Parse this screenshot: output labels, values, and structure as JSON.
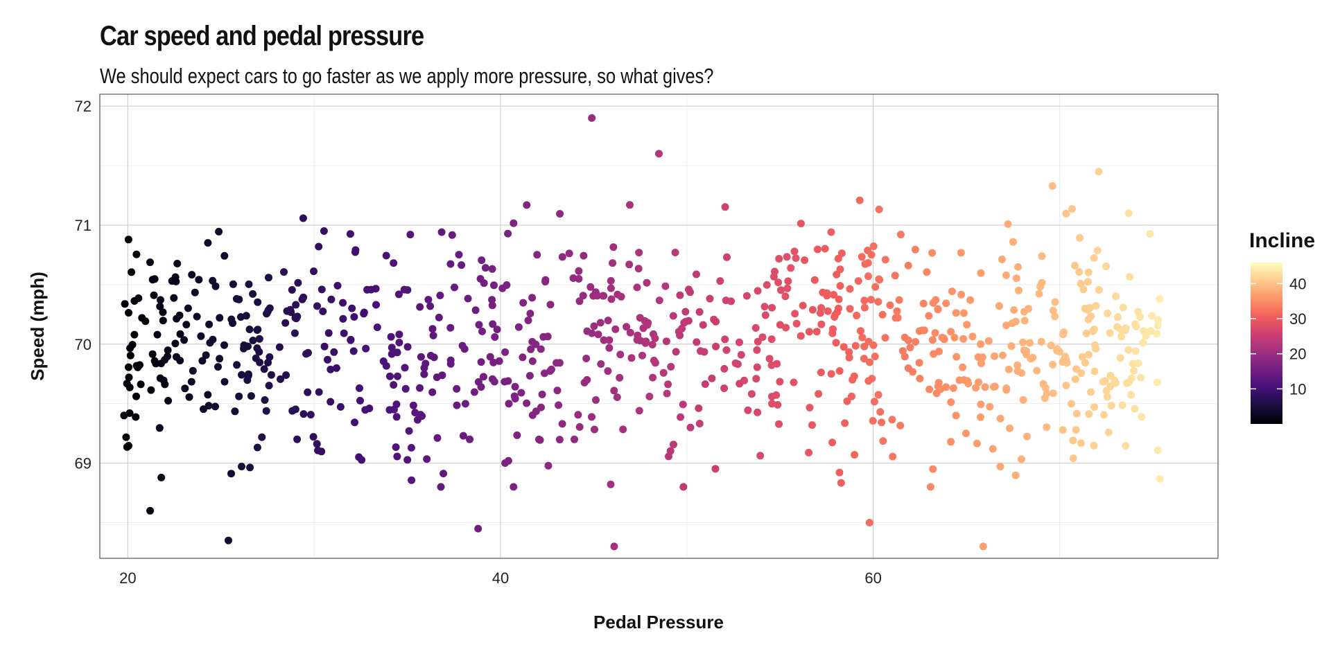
{
  "chart_data": {
    "type": "scatter",
    "title": "Car speed and pedal pressure",
    "subtitle": "We should expect cars to go faster as we apply more pressure, so what gives?",
    "xlabel": "Pedal Pressure",
    "ylabel": "Speed (mph)",
    "xlim": [
      18.5,
      78.5
    ],
    "ylim": [
      68.2,
      72.1
    ],
    "x_ticks": [
      20,
      40,
      60
    ],
    "x_tick_labels": [
      "20",
      "40",
      "60"
    ],
    "y_ticks": [
      69,
      70,
      71,
      72
    ],
    "y_tick_labels": [
      "69",
      "70",
      "71",
      "72"
    ],
    "grid": true,
    "color_by": "Incline",
    "legend": {
      "title": "Incline",
      "ticks": [
        10,
        20,
        30,
        40
      ],
      "tick_labels": [
        "10",
        "20",
        "30",
        "40"
      ],
      "range": [
        0,
        46
      ],
      "position": "right"
    },
    "palette": [
      "#000004",
      "#180f3d",
      "#440f76",
      "#721f81",
      "#9e2f7f",
      "#cd4071",
      "#f1605d",
      "#fd9668",
      "#feca8d",
      "#fcfdbf"
    ],
    "points_summary": {
      "count_approx": 1000,
      "x_range": [
        19.8,
        75.4
      ],
      "y_center": 70.0,
      "y_spread_sd": 0.5,
      "incline_relation": "incline approximately 0.8 * (pedal_pressure - 20)"
    },
    "notable_points": [
      {
        "x": 44.9,
        "y": 71.9
      },
      {
        "x": 48.5,
        "y": 71.6
      },
      {
        "x": 72.1,
        "y": 71.45
      },
      {
        "x": 19.8,
        "y": 69.4
      },
      {
        "x": 21.2,
        "y": 68.6
      },
      {
        "x": 25.4,
        "y": 68.35
      },
      {
        "x": 46.1,
        "y": 68.3
      },
      {
        "x": 65.9,
        "y": 68.3
      },
      {
        "x": 59.8,
        "y": 68.5
      },
      {
        "x": 38.8,
        "y": 68.45
      }
    ]
  }
}
